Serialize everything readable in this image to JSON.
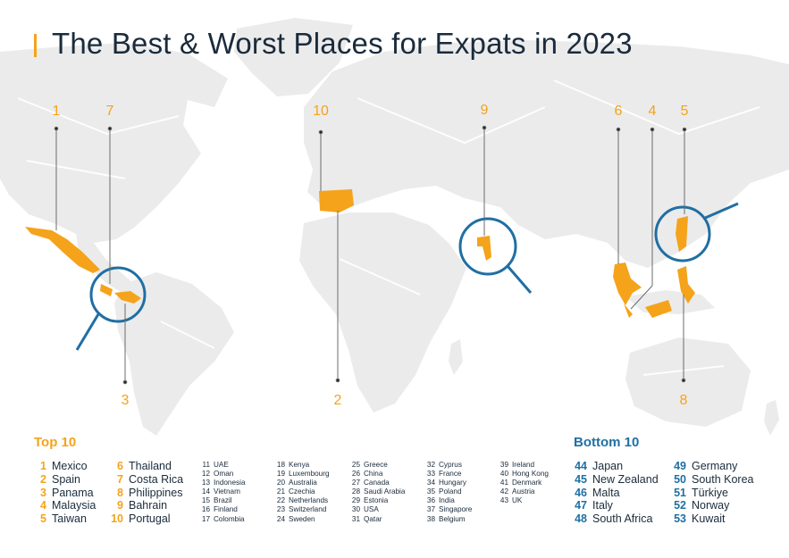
{
  "title": "The Best & Worst Places for Expats in 2023",
  "colors": {
    "accent_orange": "#f5a31a",
    "accent_blue": "#1f6fa3",
    "land": "#ebebeb",
    "text": "#1a2b3c"
  },
  "callouts": [
    {
      "rank": "1",
      "region": "Mexico"
    },
    {
      "rank": "7",
      "region": "Costa Rica"
    },
    {
      "rank": "3",
      "region": "Panama"
    },
    {
      "rank": "10",
      "region": "Portugal"
    },
    {
      "rank": "2",
      "region": "Spain"
    },
    {
      "rank": "9",
      "region": "Bahrain"
    },
    {
      "rank": "6",
      "region": "Thailand"
    },
    {
      "rank": "4",
      "region": "Malaysia"
    },
    {
      "rank": "5",
      "region": "Taiwan"
    },
    {
      "rank": "8",
      "region": "Philippines"
    }
  ],
  "top10": {
    "title": "Top 10",
    "col1": [
      {
        "rank": "1",
        "name": "Mexico"
      },
      {
        "rank": "2",
        "name": "Spain"
      },
      {
        "rank": "3",
        "name": "Panama"
      },
      {
        "rank": "4",
        "name": "Malaysia"
      },
      {
        "rank": "5",
        "name": "Taiwan"
      }
    ],
    "col2": [
      {
        "rank": "6",
        "name": "Thailand"
      },
      {
        "rank": "7",
        "name": "Costa Rica"
      },
      {
        "rank": "8",
        "name": "Philippines"
      },
      {
        "rank": "9",
        "name": "Bahrain"
      },
      {
        "rank": "10",
        "name": "Portugal"
      }
    ]
  },
  "middle": [
    [
      {
        "rank": "11",
        "name": "UAE"
      },
      {
        "rank": "12",
        "name": "Oman"
      },
      {
        "rank": "13",
        "name": "Indonesia"
      },
      {
        "rank": "14",
        "name": "Vietnam"
      },
      {
        "rank": "15",
        "name": "Brazil"
      },
      {
        "rank": "16",
        "name": "Finland"
      },
      {
        "rank": "17",
        "name": "Colombia"
      }
    ],
    [
      {
        "rank": "18",
        "name": "Kenya"
      },
      {
        "rank": "19",
        "name": "Luxembourg"
      },
      {
        "rank": "20",
        "name": "Australia"
      },
      {
        "rank": "21",
        "name": "Czechia"
      },
      {
        "rank": "22",
        "name": "Netherlands"
      },
      {
        "rank": "23",
        "name": "Switzerland"
      },
      {
        "rank": "24",
        "name": "Sweden"
      }
    ],
    [
      {
        "rank": "25",
        "name": "Greece"
      },
      {
        "rank": "26",
        "name": "China"
      },
      {
        "rank": "27",
        "name": "Canada"
      },
      {
        "rank": "28",
        "name": "Saudi Arabia"
      },
      {
        "rank": "29",
        "name": "Estonia"
      },
      {
        "rank": "30",
        "name": "USA"
      },
      {
        "rank": "31",
        "name": "Qatar"
      }
    ],
    [
      {
        "rank": "32",
        "name": "Cyprus"
      },
      {
        "rank": "33",
        "name": "France"
      },
      {
        "rank": "34",
        "name": "Hungary"
      },
      {
        "rank": "35",
        "name": "Poland"
      },
      {
        "rank": "36",
        "name": "India"
      },
      {
        "rank": "37",
        "name": "Singapore"
      },
      {
        "rank": "38",
        "name": "Belgium"
      }
    ],
    [
      {
        "rank": "39",
        "name": "Ireland"
      },
      {
        "rank": "40",
        "name": "Hong Kong"
      },
      {
        "rank": "41",
        "name": "Denmark"
      },
      {
        "rank": "42",
        "name": "Austria"
      },
      {
        "rank": "43",
        "name": "UK"
      }
    ]
  ],
  "bottom10": {
    "title": "Bottom 10",
    "col1": [
      {
        "rank": "44",
        "name": "Japan"
      },
      {
        "rank": "45",
        "name": "New Zealand"
      },
      {
        "rank": "46",
        "name": "Malta"
      },
      {
        "rank": "47",
        "name": "Italy"
      },
      {
        "rank": "48",
        "name": "South Africa"
      }
    ],
    "col2": [
      {
        "rank": "49",
        "name": "Germany"
      },
      {
        "rank": "50",
        "name": "South Korea"
      },
      {
        "rank": "51",
        "name": "Türkiye"
      },
      {
        "rank": "52",
        "name": "Norway"
      },
      {
        "rank": "53",
        "name": "Kuwait"
      }
    ]
  }
}
